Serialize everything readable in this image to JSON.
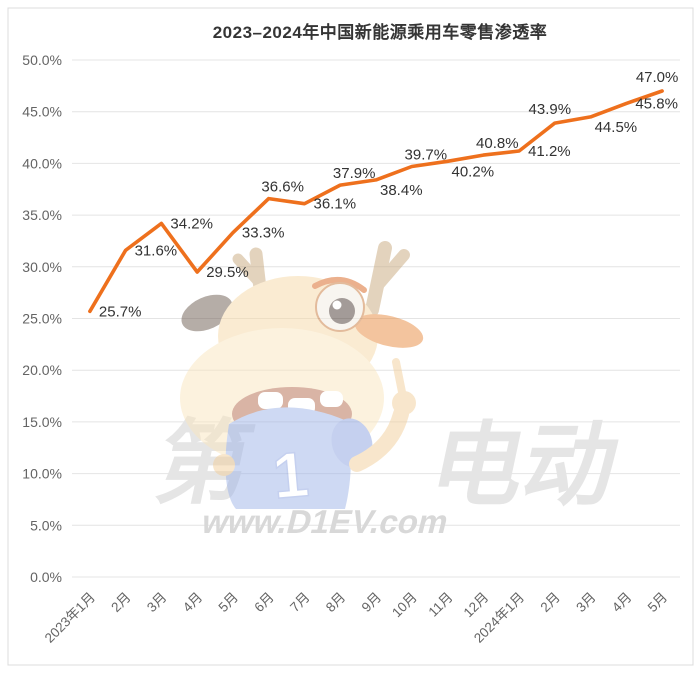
{
  "page": {
    "title": "2023–2024年中国新能源乘用车零售渗透率"
  },
  "watermark": {
    "left_char": "第",
    "right_chars": "电动",
    "url": "www.D1EV.com",
    "shirt_number": "1",
    "mascot": "d1ev-deer-mascot"
  },
  "chart_data": {
    "type": "line",
    "title": "2023–2024年中国新能源乘用车零售渗透率",
    "categories": [
      "2023年1月",
      "2月",
      "3月",
      "4月",
      "5月",
      "6月",
      "7月",
      "8月",
      "9月",
      "10月",
      "11月",
      "12月",
      "2024年1月",
      "2月",
      "3月",
      "4月",
      "5月"
    ],
    "series": [
      {
        "name": "新能源乘用车零售渗透率",
        "values": [
          25.7,
          31.6,
          34.2,
          29.5,
          33.3,
          36.6,
          36.1,
          37.9,
          38.4,
          39.7,
          40.2,
          40.8,
          41.2,
          43.9,
          44.5,
          45.8,
          47.0
        ]
      }
    ],
    "data_labels": [
      "25.7%",
      "31.6%",
      "34.2%",
      "29.5%",
      "33.3%",
      "36.6%",
      "36.1%",
      "37.9%",
      "38.4%",
      "39.7%",
      "40.2%",
      "40.8%",
      "41.2%",
      "43.9%",
      "44.5%",
      "45.8%",
      "47.0%"
    ],
    "label_placements": [
      "right",
      "right",
      "right",
      "right",
      "right",
      "above",
      "right",
      "above",
      "below",
      "above",
      "below",
      "above",
      "right",
      "above-left",
      "below",
      "right",
      "above-left"
    ],
    "xlabel": "",
    "ylabel": "",
    "ylim": [
      0,
      50
    ],
    "ytick_step": 5,
    "ytick_labels": [
      "0.0%",
      "5.0%",
      "10.0%",
      "15.0%",
      "20.0%",
      "25.0%",
      "30.0%",
      "35.0%",
      "40.0%",
      "45.0%",
      "50.0%"
    ],
    "grid": true,
    "legend": "none",
    "colors": {
      "line": "#EE701D",
      "grid": "#E4E4E4",
      "axis_text": "#646464",
      "data_label": "#333333",
      "title": "#353535",
      "border": "#DCDCDC",
      "watermark_text": "#E5E5E5",
      "watermark_url": "#D8D8D8"
    }
  }
}
